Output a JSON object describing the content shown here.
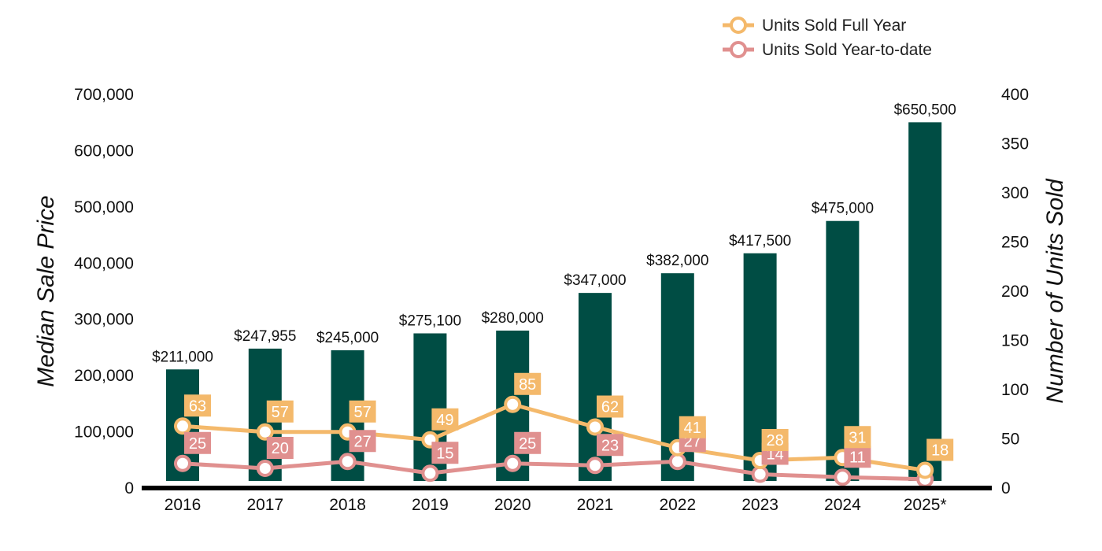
{
  "chart_data": {
    "type": "bar",
    "categories": [
      "2016",
      "2017",
      "2018",
      "2019",
      "2020",
      "2021",
      "2022",
      "2023",
      "2024",
      "2025*"
    ],
    "bars": {
      "name": "Median Sale Price",
      "values": [
        211000,
        247955,
        245000,
        275100,
        280000,
        347000,
        382000,
        417500,
        475000,
        650500
      ],
      "labels": [
        "$211,000",
        "$247,955",
        "$245,000",
        "$275,100",
        "$280,000",
        "$347,000",
        "$382,000",
        "$417,500",
        "$475,000",
        "$650,500"
      ],
      "color": "#004d44"
    },
    "series": [
      {
        "name": "Units Sold Full Year",
        "type": "line",
        "axis": "right",
        "values": [
          63,
          57,
          57,
          49,
          85,
          62,
          41,
          28,
          31,
          18
        ],
        "color": "#f4b96b"
      },
      {
        "name": "Units Sold Year-to-date",
        "type": "line",
        "axis": "right",
        "values": [
          25,
          20,
          27,
          15,
          25,
          23,
          27,
          14,
          11,
          9
        ],
        "labels": [
          "25",
          "20",
          "27",
          "15",
          "25",
          "23",
          "27",
          "14",
          "11",
          ""
        ],
        "color": "#e0908f"
      }
    ],
    "ylabel": "Median Sale Price",
    "y2label": "Number of Units Sold",
    "ylim": [
      0,
      700000
    ],
    "y2lim": [
      0,
      400
    ],
    "yticks": [
      "0",
      "100,000",
      "200,000",
      "300,000",
      "400,000",
      "500,000",
      "600,000",
      "700,000"
    ],
    "y2ticks": [
      "0",
      "50",
      "100",
      "150",
      "200",
      "250",
      "300",
      "350",
      "400"
    ],
    "grid": false,
    "legend_position": "top-right"
  }
}
